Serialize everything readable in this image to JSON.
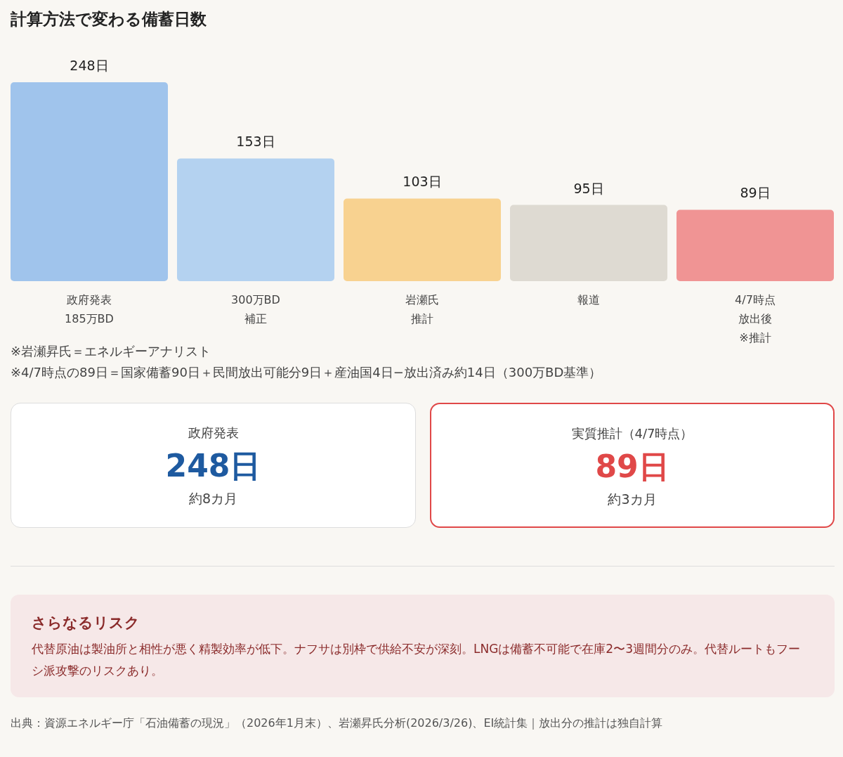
{
  "chart_data": [
    {
      "type": "bar",
      "title": "計算方法で変わる備蓄日数",
      "categories": [
        "政府発表\n185万BD",
        "300万BD\n補正",
        "岩瀬氏推計",
        "報道",
        "4/7時点放出後※推計"
      ],
      "values": [
        248,
        153,
        103,
        95,
        89
      ],
      "colors": [
        "#a0c4ec",
        "#b4d2f0",
        "#f8d290",
        "#dedad2",
        "#f09494"
      ],
      "value_labels": [
        "248日",
        "153日",
        "103日",
        "95日",
        "89日"
      ],
      "annotations": [
        "※岩瀬昇氏＝エネルギーアナリスト",
        "※4/7時点の89日＝国家備蓄90日＋民間放出可能分9日＋産油国4日−放出済み約14日（300万BD基準）"
      ]
    },
    {
      "type": "other",
      "title": "政府発表",
      "annotations": [
        "248日",
        "約8カ月"
      ],
      "color": "#1e5aa0"
    },
    {
      "type": "other",
      "title": "実質推計（4/7時点）",
      "annotations": [
        "89日",
        "約3カ月"
      ],
      "color": "#e04848"
    },
    {
      "type": "other",
      "title": "さらなるリスク",
      "annotations": [
        "代替原油は製油所と相性が悪く精製効率が低下。ナフサは別枠で供給不安が深刻。LNGは備蓄不可能で在庫2〜3週間分のみ。代替ルートもフーシ派攻撃のリスクあり。",
        "出典：資源エネルギー庁「石油備蓄の現況」（2026年1月末）、岩瀬昇氏分析(2026/3/26)、EI統計集｜放出分の推計は独自計算"
      ]
    }
  ]
}
